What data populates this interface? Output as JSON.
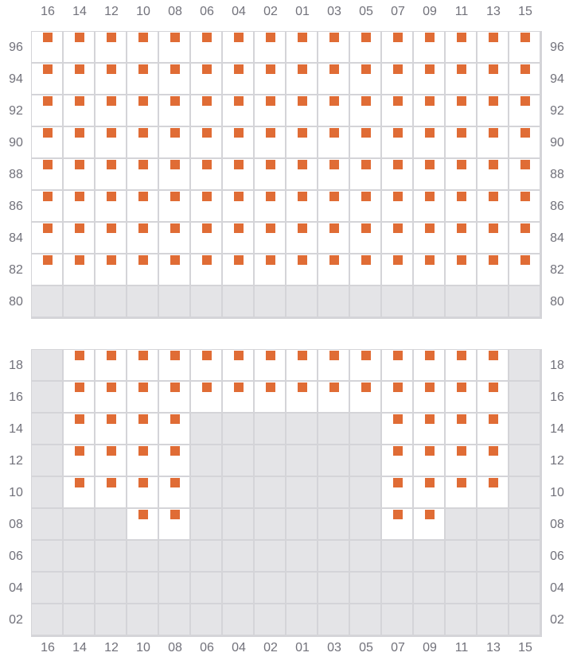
{
  "columns": [
    "16",
    "14",
    "12",
    "10",
    "08",
    "06",
    "04",
    "02",
    "01",
    "03",
    "05",
    "07",
    "09",
    "11",
    "13",
    "15"
  ],
  "colors": {
    "seat": "#e06c35",
    "unavailable": "#e4e4e7",
    "grid": "#d4d4d8"
  },
  "legend_codes": {
    "A": "available seat",
    "X": "unavailable"
  },
  "sections": [
    {
      "rows": [
        {
          "label": "96",
          "cells": "AAAAAAAAAAAAAAAA"
        },
        {
          "label": "94",
          "cells": "AAAAAAAAAAAAAAAA"
        },
        {
          "label": "92",
          "cells": "AAAAAAAAAAAAAAAA"
        },
        {
          "label": "90",
          "cells": "AAAAAAAAAAAAAAAA"
        },
        {
          "label": "88",
          "cells": "AAAAAAAAAAAAAAAA"
        },
        {
          "label": "86",
          "cells": "AAAAAAAAAAAAAAAA"
        },
        {
          "label": "84",
          "cells": "AAAAAAAAAAAAAAAA"
        },
        {
          "label": "82",
          "cells": "AAAAAAAAAAAAAAAA"
        },
        {
          "label": "80",
          "cells": "XXXXXXXXXXXXXXXX"
        }
      ]
    },
    {
      "rows": [
        {
          "label": "18",
          "cells": "XAAAAAAAAAAAAAAX"
        },
        {
          "label": "16",
          "cells": "XAAAAAAAAAAAAAAX"
        },
        {
          "label": "14",
          "cells": "XAAAAXXXXXXAAAAX"
        },
        {
          "label": "12",
          "cells": "XAAAAXXXXXXAAAAX"
        },
        {
          "label": "10",
          "cells": "XAAAAXXXXXXAAAAX"
        },
        {
          "label": "08",
          "cells": "XXXAAXXXXXXAAXXX"
        },
        {
          "label": "06",
          "cells": "XXXXXXXXXXXXXXXX"
        },
        {
          "label": "04",
          "cells": "XXXXXXXXXXXXXXXX"
        },
        {
          "label": "02",
          "cells": "XXXXXXXXXXXXXXXX"
        }
      ]
    }
  ]
}
